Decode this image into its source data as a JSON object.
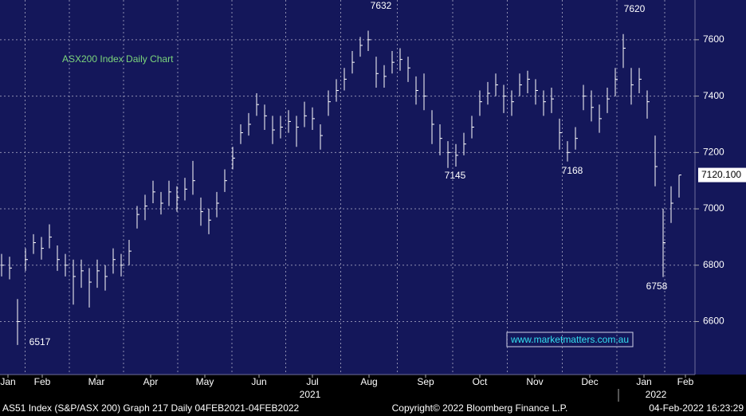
{
  "chart_data": {
    "type": "hlc",
    "title": "ASX200 Index Daily Chart",
    "color": "#ffffff",
    "high": [
      6840,
      6830,
      6680,
      6860,
      6910,
      6900,
      6945,
      6870,
      6840,
      6820,
      6820,
      6790,
      6820,
      6800,
      6860,
      6840,
      6890,
      7010,
      7050,
      7100,
      7060,
      7100,
      7080,
      7110,
      7170,
      7040,
      7000,
      7060,
      7140,
      7220,
      7300,
      7340,
      7410,
      7370,
      7330,
      7330,
      7350,
      7330,
      7380,
      7360,
      7300,
      7420,
      7460,
      7500,
      7560,
      7610,
      7632,
      7540,
      7510,
      7560,
      7570,
      7540,
      7470,
      7480,
      7350,
      7300,
      7240,
      7230,
      7270,
      7330,
      7420,
      7450,
      7480,
      7440,
      7420,
      7480,
      7490,
      7460,
      7420,
      7430,
      7320,
      7240,
      7290,
      7440,
      7420,
      7370,
      7430,
      7500,
      7620,
      7500,
      7500,
      7420,
      7260,
      7000,
      7080,
      7120.1
    ],
    "low": [
      6760,
      6750,
      6517,
      6780,
      6840,
      6820,
      6860,
      6780,
      6760,
      6660,
      6720,
      6650,
      6720,
      6710,
      6770,
      6760,
      6800,
      6930,
      6960,
      7020,
      6980,
      7010,
      6990,
      7030,
      7050,
      6940,
      6910,
      6970,
      7060,
      7140,
      7230,
      7260,
      7330,
      7280,
      7230,
      7250,
      7270,
      7220,
      7290,
      7280,
      7210,
      7330,
      7380,
      7420,
      7480,
      7540,
      7560,
      7430,
      7430,
      7480,
      7490,
      7450,
      7370,
      7350,
      7230,
      7190,
      7145,
      7150,
      7190,
      7250,
      7330,
      7370,
      7400,
      7340,
      7330,
      7400,
      7410,
      7370,
      7330,
      7340,
      7210,
      7168,
      7210,
      7350,
      7310,
      7270,
      7340,
      7400,
      7500,
      7370,
      7410,
      7320,
      7080,
      6758,
      6950,
      7040
    ],
    "close": [
      6800,
      6790,
      6600,
      6820,
      6880,
      6860,
      6900,
      6820,
      6800,
      6760,
      6780,
      6740,
      6780,
      6760,
      6820,
      6800,
      6850,
      6980,
      7010,
      7060,
      7020,
      7060,
      7040,
      7070,
      7100,
      6990,
      6960,
      7020,
      7100,
      7180,
      7270,
      7300,
      7370,
      7330,
      7280,
      7290,
      7310,
      7290,
      7330,
      7320,
      7260,
      7380,
      7420,
      7460,
      7520,
      7580,
      7600,
      7480,
      7470,
      7520,
      7530,
      7500,
      7420,
      7400,
      7300,
      7250,
      7200,
      7190,
      7230,
      7290,
      7380,
      7410,
      7440,
      7400,
      7380,
      7440,
      7460,
      7420,
      7380,
      7390,
      7270,
      7200,
      7250,
      7400,
      7360,
      7320,
      7390,
      7460,
      7570,
      7440,
      7460,
      7380,
      7150,
      6880,
      7020,
      7120.1
    ],
    "last_price": {
      "value": 7120.1,
      "label": "7120.100"
    },
    "xlim": [
      -0.2,
      87
    ],
    "xticks": [
      {
        "value": 0.8,
        "label": "Jan"
      },
      {
        "value": 5.1,
        "label": "Feb"
      },
      {
        "value": 11.9,
        "label": "Mar"
      },
      {
        "value": 18.7,
        "label": "Apr"
      },
      {
        "value": 25.5,
        "label": "May"
      },
      {
        "value": 32.3,
        "label": "Jun"
      },
      {
        "value": 39,
        "label": "Jul"
      },
      {
        "value": 46.1,
        "label": "Aug"
      },
      {
        "value": 53.2,
        "label": "Sep"
      },
      {
        "value": 60,
        "label": "Oct"
      },
      {
        "value": 66.9,
        "label": "Nov"
      },
      {
        "value": 73.8,
        "label": "Dec"
      },
      {
        "value": 80.6,
        "label": "Jan"
      },
      {
        "value": 85.8,
        "label": "Feb"
      }
    ],
    "years": [
      "2021",
      "2022"
    ],
    "ylim": [
      6412,
      7741
    ],
    "yticks": [
      6600,
      6800,
      7000,
      7200,
      7400,
      7600
    ],
    "grid": true,
    "annotations": [
      "7632",
      "7620",
      "6517",
      "7145",
      "7168",
      "6758"
    ],
    "watermark": "www.marketmatters.com.au",
    "footer": {
      "left": "AS51 Index (S&P/ASX 200) Graph 217  Daily 04FEB2021-04FEB2022",
      "center": "Copyright© 2022 Bloomberg Finance L.P.",
      "right": "04-Feb-2022 16:23:29"
    }
  }
}
